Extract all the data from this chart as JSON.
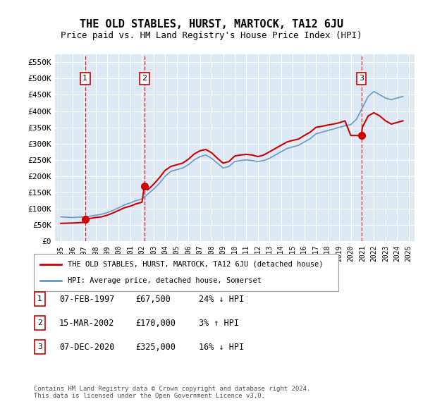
{
  "title": "THE OLD STABLES, HURST, MARTOCK, TA12 6JU",
  "subtitle": "Price paid vs. HM Land Registry's House Price Index (HPI)",
  "ylabel_ticks": [
    "£0",
    "£50K",
    "£100K",
    "£150K",
    "£200K",
    "£250K",
    "£300K",
    "£350K",
    "£400K",
    "£450K",
    "£500K",
    "£550K"
  ],
  "ytick_values": [
    0,
    50000,
    100000,
    150000,
    200000,
    250000,
    300000,
    350000,
    400000,
    450000,
    500000,
    550000
  ],
  "ylim": [
    0,
    575000
  ],
  "xmin": 1994.5,
  "xmax": 2025.5,
  "background_color": "#dce9f5",
  "plot_bg_color": "#dce9f5",
  "grid_color": "#ffffff",
  "sale_dates": [
    1997.1,
    2002.2,
    2020.92
  ],
  "sale_prices": [
    67500,
    170000,
    325000
  ],
  "sale_labels": [
    "1",
    "2",
    "3"
  ],
  "dashed_line_color": "#cc0000",
  "sale_dot_color": "#cc0000",
  "hpi_line_color": "#6699cc",
  "price_line_color": "#cc0000",
  "legend_property": "THE OLD STABLES, HURST, MARTOCK, TA12 6JU (detached house)",
  "legend_hpi": "HPI: Average price, detached house, Somerset",
  "table_rows": [
    [
      "1",
      "07-FEB-1997",
      "£67,500",
      "24% ↓ HPI"
    ],
    [
      "2",
      "15-MAR-2002",
      "£170,000",
      "3% ↑ HPI"
    ],
    [
      "3",
      "07-DEC-2020",
      "£325,000",
      "16% ↓ HPI"
    ]
  ],
  "footer": "Contains HM Land Registry data © Crown copyright and database right 2024.\nThis data is licensed under the Open Government Licence v3.0.",
  "hpi_data": {
    "years": [
      1995,
      1995.5,
      1996,
      1996.5,
      1997,
      1997.5,
      1998,
      1998.5,
      1999,
      1999.5,
      2000,
      2000.5,
      2001,
      2001.5,
      2002,
      2002.5,
      2003,
      2003.5,
      2004,
      2004.5,
      2005,
      2005.5,
      2006,
      2006.5,
      2007,
      2007.5,
      2008,
      2008.5,
      2009,
      2009.5,
      2010,
      2010.5,
      2011,
      2011.5,
      2012,
      2012.5,
      2013,
      2013.5,
      2014,
      2014.5,
      2015,
      2015.5,
      2016,
      2016.5,
      2017,
      2017.5,
      2018,
      2018.5,
      2019,
      2019.5,
      2020,
      2020.5,
      2021,
      2021.5,
      2022,
      2022.5,
      2023,
      2023.5,
      2024,
      2024.5
    ],
    "values": [
      75000,
      74000,
      73000,
      74000,
      75000,
      77000,
      80000,
      83000,
      88000,
      95000,
      103000,
      112000,
      118000,
      125000,
      130000,
      145000,
      160000,
      178000,
      200000,
      215000,
      220000,
      225000,
      235000,
      250000,
      260000,
      265000,
      255000,
      240000,
      225000,
      230000,
      245000,
      248000,
      250000,
      248000,
      245000,
      248000,
      255000,
      265000,
      275000,
      285000,
      290000,
      295000,
      305000,
      315000,
      330000,
      335000,
      340000,
      345000,
      350000,
      355000,
      358000,
      375000,
      410000,
      445000,
      460000,
      450000,
      440000,
      435000,
      440000,
      445000
    ]
  },
  "price_hpi_data": {
    "years": [
      1995,
      1995.5,
      1996,
      1996.5,
      1997,
      1997.1,
      1997.5,
      1998,
      1998.5,
      1999,
      1999.5,
      2000,
      2000.5,
      2001,
      2001.5,
      2002,
      2002.2,
      2002.5,
      2003,
      2003.5,
      2004,
      2004.5,
      2005,
      2005.5,
      2006,
      2006.5,
      2007,
      2007.5,
      2008,
      2008.5,
      2009,
      2009.5,
      2010,
      2010.5,
      2011,
      2011.5,
      2012,
      2012.5,
      2013,
      2013.5,
      2014,
      2014.5,
      2015,
      2015.5,
      2016,
      2016.5,
      2017,
      2017.5,
      2018,
      2018.5,
      2019,
      2019.5,
      2020,
      2020.92,
      2021,
      2021.5,
      2022,
      2022.5,
      2023,
      2023.5,
      2024,
      2024.5
    ],
    "values": [
      55000,
      55500,
      56000,
      57000,
      58000,
      67500,
      70000,
      73000,
      75000,
      80000,
      87000,
      95000,
      103000,
      108000,
      115000,
      120000,
      170000,
      158000,
      175000,
      195000,
      218000,
      230000,
      235000,
      240000,
      252000,
      268000,
      278000,
      282000,
      272000,
      255000,
      240000,
      245000,
      262000,
      265000,
      267000,
      265000,
      260000,
      265000,
      275000,
      285000,
      295000,
      305000,
      310000,
      314000,
      325000,
      335000,
      350000,
      353000,
      357000,
      360000,
      364000,
      370000,
      325000,
      325000,
      350000,
      385000,
      395000,
      385000,
      370000,
      360000,
      365000,
      370000
    ]
  }
}
